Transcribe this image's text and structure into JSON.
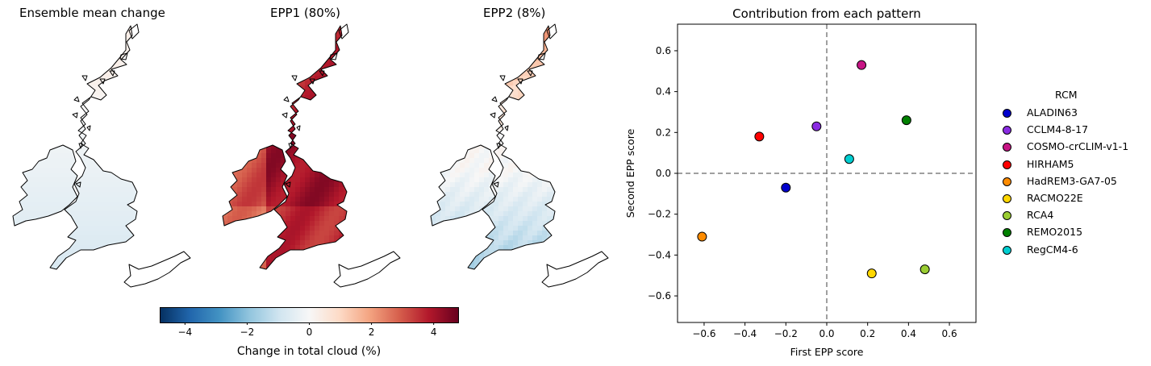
{
  "maps": [
    {
      "title": "Ensemble mean change",
      "pattern": "mean"
    },
    {
      "title": "EPP1 (80%)",
      "pattern": "epp1"
    },
    {
      "title": "EPP2 (8%)",
      "pattern": "epp2"
    }
  ],
  "colorbar": {
    "label": "Change in total cloud (%)",
    "range": [
      -4.8,
      4.8
    ],
    "ticks": [
      {
        "value": -4,
        "label": "−4"
      },
      {
        "value": -2,
        "label": "−2"
      },
      {
        "value": 0,
        "label": "0"
      },
      {
        "value": 2,
        "label": "2"
      },
      {
        "value": 4,
        "label": "4"
      }
    ],
    "colors": [
      "#053061",
      "#2166ac",
      "#4393c3",
      "#92c5de",
      "#d1e5f0",
      "#f7f7f7",
      "#fddbc7",
      "#f4a582",
      "#d6604d",
      "#b2182b",
      "#67001f"
    ]
  },
  "chart_data": {
    "type": "scatter",
    "title": "Contribution from each pattern",
    "xlabel": "First EPP score",
    "ylabel": "Second EPP score",
    "xlim": [
      -0.73,
      0.73
    ],
    "ylim": [
      -0.73,
      0.73
    ],
    "xticks": [
      {
        "value": -0.6,
        "label": "−0.6"
      },
      {
        "value": -0.4,
        "label": "−0.4"
      },
      {
        "value": -0.2,
        "label": "−0.2"
      },
      {
        "value": 0.0,
        "label": "0.0"
      },
      {
        "value": 0.2,
        "label": "0.2"
      },
      {
        "value": 0.4,
        "label": "0.4"
      },
      {
        "value": 0.6,
        "label": "0.6"
      }
    ],
    "yticks": [
      {
        "value": 0.6,
        "label": "0.6"
      },
      {
        "value": 0.4,
        "label": "0.4"
      },
      {
        "value": 0.2,
        "label": "0.2"
      },
      {
        "value": 0.0,
        "label": "0.0"
      },
      {
        "value": -0.2,
        "label": "−0.2"
      },
      {
        "value": -0.4,
        "label": "−0.4"
      },
      {
        "value": -0.6,
        "label": "−0.6"
      }
    ],
    "reference_lines": {
      "x": 0,
      "y": 0,
      "style": "dashed",
      "color": "#808080"
    },
    "legend": {
      "title": "RCM",
      "placement": "outside-right"
    },
    "points": [
      {
        "name": "ALADIN63",
        "x": -0.2,
        "y": -0.07,
        "color": "#0000cd"
      },
      {
        "name": "CCLM4-8-17",
        "x": -0.05,
        "y": 0.23,
        "color": "#8a2be2"
      },
      {
        "name": "COSMO-crCLIM-v1-1",
        "x": 0.17,
        "y": 0.53,
        "color": "#c71585"
      },
      {
        "name": "HIRHAM5",
        "x": -0.33,
        "y": 0.18,
        "color": "#ff0000"
      },
      {
        "name": "HadREM3-GA7-05",
        "x": -0.61,
        "y": -0.31,
        "color": "#ff8c00"
      },
      {
        "name": "RACMO22E",
        "x": 0.22,
        "y": -0.49,
        "color": "#ffd700"
      },
      {
        "name": "RCA4",
        "x": 0.48,
        "y": -0.47,
        "color": "#9acd32"
      },
      {
        "name": "REMO2015",
        "x": 0.39,
        "y": 0.26,
        "color": "#008000"
      },
      {
        "name": "RegCM4-6",
        "x": 0.11,
        "y": 0.07,
        "color": "#00ced1"
      }
    ]
  }
}
